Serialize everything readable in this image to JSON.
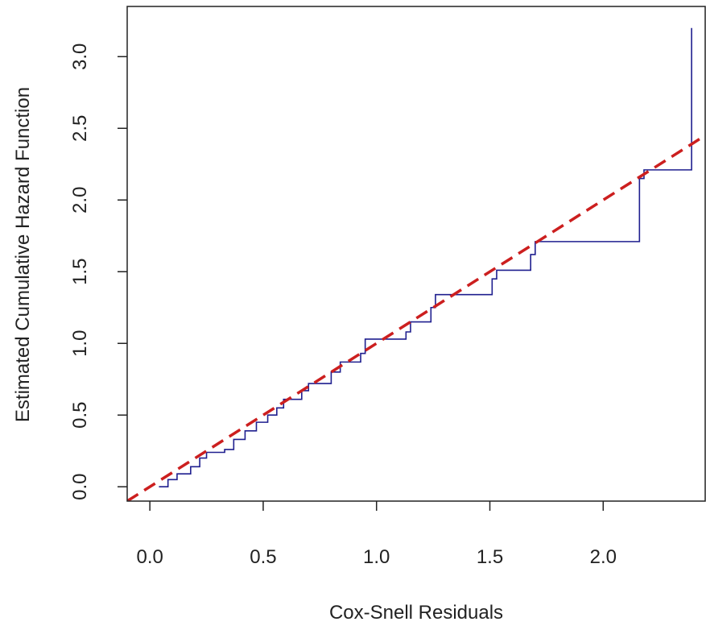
{
  "chart_data": {
    "type": "line",
    "title": "",
    "xlabel": "Cox-Snell Residuals",
    "ylabel": "Estimated Cumulative Hazard Function",
    "xlim": [
      -0.1,
      2.45
    ],
    "ylim": [
      -0.1,
      3.35
    ],
    "x_ticks": [
      0.0,
      0.5,
      1.0,
      1.5,
      2.0
    ],
    "x_tick_labels": [
      "0.0",
      "0.5",
      "1.0",
      "1.5",
      "2.0"
    ],
    "y_ticks": [
      0.0,
      0.5,
      1.0,
      1.5,
      2.0,
      2.5,
      3.0
    ],
    "y_tick_labels": [
      "0.0",
      "0.5",
      "1.0",
      "1.5",
      "2.0",
      "2.5",
      "3.0"
    ],
    "grid": false,
    "legend": "none",
    "series": [
      {
        "kind": "step",
        "color": "#1f1f8f",
        "x": [
          0.04,
          0.08,
          0.12,
          0.18,
          0.22,
          0.25,
          0.33,
          0.37,
          0.42,
          0.47,
          0.52,
          0.56,
          0.59,
          0.67,
          0.7,
          0.8,
          0.84,
          0.93,
          0.95,
          1.13,
          1.15,
          1.24,
          1.26,
          1.51,
          1.53,
          1.68,
          1.7,
          2.16,
          2.18,
          2.39
        ],
        "y": [
          0.0,
          0.05,
          0.09,
          0.14,
          0.2,
          0.24,
          0.26,
          0.33,
          0.39,
          0.45,
          0.5,
          0.55,
          0.61,
          0.67,
          0.72,
          0.8,
          0.87,
          0.93,
          1.03,
          1.08,
          1.15,
          1.25,
          1.34,
          1.45,
          1.51,
          1.62,
          1.71,
          2.15,
          2.21,
          3.2
        ]
      },
      {
        "kind": "reference",
        "color": "#cc1f1f",
        "dashed": true,
        "x": [
          -0.1,
          2.45
        ],
        "y": [
          -0.1,
          2.45
        ]
      }
    ]
  }
}
